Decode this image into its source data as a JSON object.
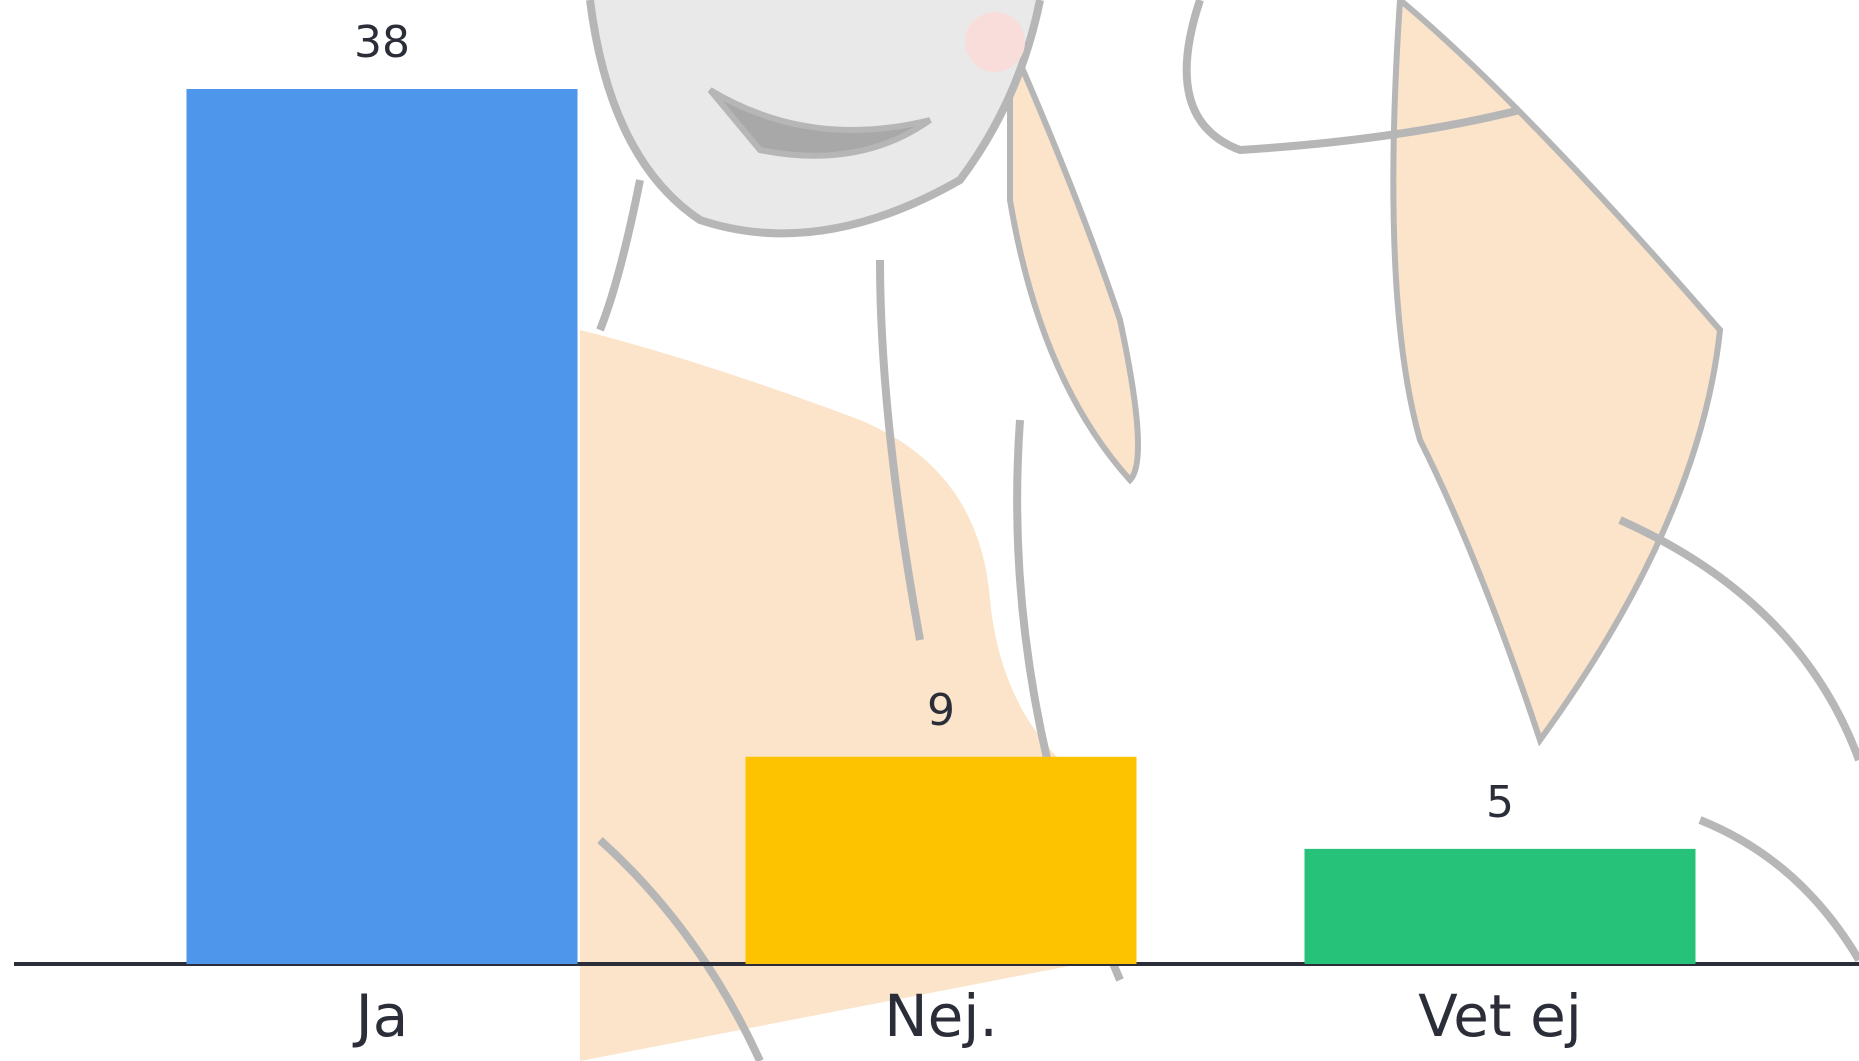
{
  "chart_data": {
    "type": "bar",
    "categories": [
      "Ja",
      "Nej.",
      "Vet ej"
    ],
    "values": [
      38,
      9,
      5
    ],
    "colors": [
      "#4e96eb",
      "#fdc300",
      "#27c27a"
    ]
  }
}
